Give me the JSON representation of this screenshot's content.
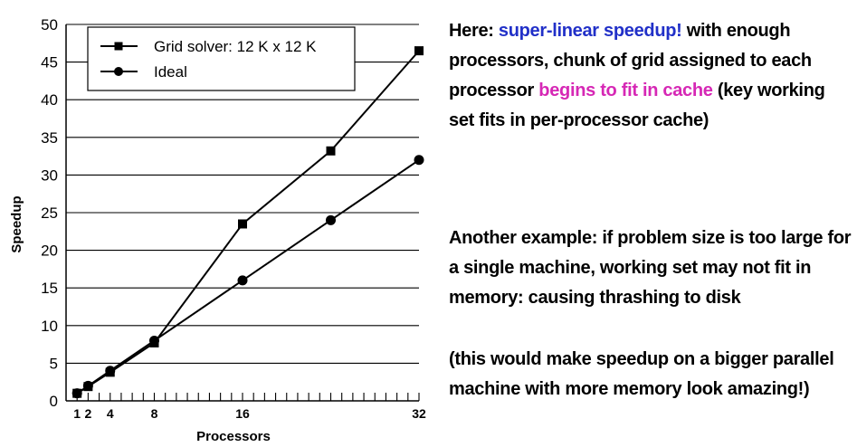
{
  "chart_data": {
    "type": "line",
    "xlabel": "Processors",
    "ylabel": "Speedup",
    "x_ticks": [
      1,
      2,
      4,
      8,
      16,
      32
    ],
    "y_ticks": [
      0,
      5,
      10,
      15,
      20,
      25,
      30,
      35,
      40,
      45,
      50
    ],
    "xlim": [
      0,
      32
    ],
    "ylim": [
      0,
      50
    ],
    "grid": "horizontal",
    "legend_position": "top-left",
    "series": [
      {
        "name": "Grid solver: 12 K x 12 K",
        "marker": "square",
        "x": [
          1,
          2,
          4,
          8,
          16,
          24,
          32
        ],
        "y": [
          1,
          1.9,
          3.8,
          7.7,
          23.5,
          33.2,
          46.5
        ]
      },
      {
        "name": "Ideal",
        "marker": "circle",
        "x": [
          1,
          2,
          4,
          8,
          16,
          24,
          32
        ],
        "y": [
          1,
          2,
          4,
          8,
          16,
          24,
          32
        ]
      }
    ]
  },
  "notes": {
    "p1": {
      "a": "Here: ",
      "b": "super-linear speedup!",
      "c": " with enough processors, chunk of grid assigned to each processor ",
      "d": "begins to fit in cache",
      "e": " (key working set fits in per-processor cache)"
    },
    "p2": "Another example: if problem size is too large for a single machine, working set may not fit in memory: causing thrashing to disk",
    "p3": "(this would make speedup on a bigger parallel machine with more memory look amazing!)"
  },
  "colors": {
    "highlight_blue": "#2130c8",
    "highlight_pink": "#d628b5"
  }
}
